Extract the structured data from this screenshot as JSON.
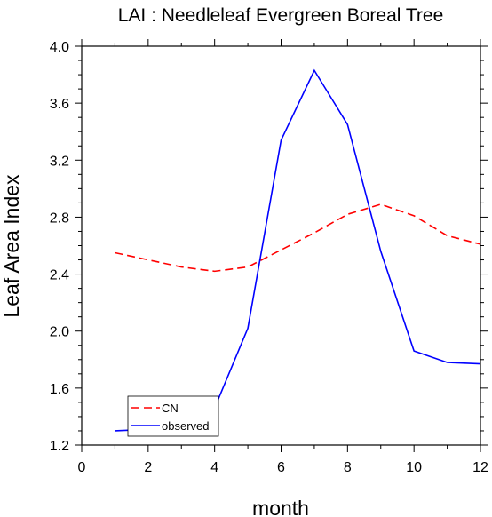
{
  "chart_data": {
    "type": "line",
    "title": "LAI : Needleleaf Evergreen Boreal Tree",
    "xlabel": "month",
    "ylabel": "Leaf Area Index",
    "xlim": [
      0,
      12
    ],
    "ylim": [
      1.2,
      4.0
    ],
    "x_ticks": [
      "0",
      "2",
      "4",
      "6",
      "8",
      "10",
      "12"
    ],
    "y_ticks": [
      "1.2",
      "1.6",
      "2.0",
      "2.4",
      "2.8",
      "3.2",
      "3.6",
      "4.0"
    ],
    "x": [
      1,
      2,
      3,
      4,
      5,
      6,
      7,
      8,
      9,
      10,
      11,
      12
    ],
    "series": [
      {
        "name": "CN",
        "color": "#ff0000",
        "dash": "dashed",
        "values": [
          2.55,
          2.5,
          2.45,
          2.42,
          2.45,
          2.57,
          2.69,
          2.82,
          2.89,
          2.81,
          2.67,
          2.61
        ]
      },
      {
        "name": "observed",
        "color": "#0000ff",
        "dash": "solid",
        "values": [
          1.3,
          1.31,
          1.35,
          1.46,
          2.02,
          3.34,
          3.83,
          3.45,
          2.56,
          1.86,
          1.78,
          1.77
        ]
      }
    ],
    "legend_position": "bottom-left",
    "grid": false
  }
}
